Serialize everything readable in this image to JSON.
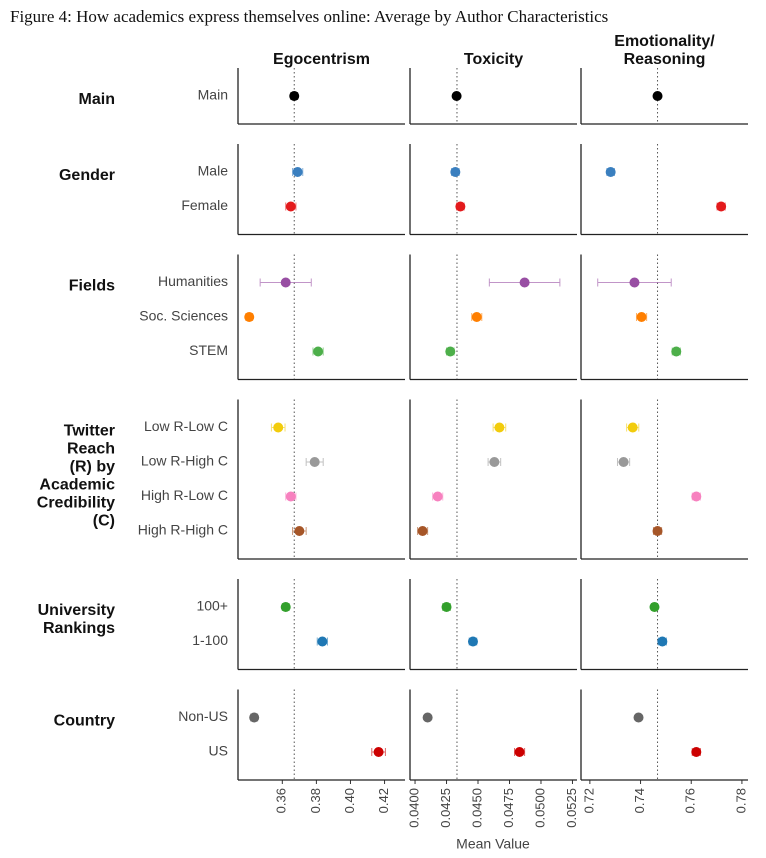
{
  "chart_data": {
    "type": "dot",
    "title": "Figure 4: How academics express themselves online: Average by Author Characteristics",
    "xlabel": "Mean Value",
    "panels": [
      {
        "title": [
          "Egocentrism"
        ],
        "xlim": [
          0.334,
          0.432
        ],
        "xticks": [
          {
            "value": 0.36,
            "label": "0.36"
          },
          {
            "value": 0.38,
            "label": "0.38"
          },
          {
            "value": 0.4,
            "label": "0.40"
          },
          {
            "value": 0.42,
            "label": "0.42"
          }
        ],
        "reference": 0.367
      },
      {
        "title": [
          "Toxicity"
        ],
        "xlim": [
          0.0396,
          0.05286
        ],
        "xticks": [
          {
            "value": 0.04,
            "label": "0.0400"
          },
          {
            "value": 0.0425,
            "label": "0.0425"
          },
          {
            "value": 0.045,
            "label": "0.0450"
          },
          {
            "value": 0.0475,
            "label": "0.0475"
          },
          {
            "value": 0.05,
            "label": "0.0500"
          },
          {
            "value": 0.0525,
            "label": "0.0525"
          }
        ],
        "reference": 0.04333
      },
      {
        "title": [
          "Emotionality/",
          "Reasoning"
        ],
        "xlim": [
          0.7165,
          0.7824
        ],
        "xticks": [
          0.72,
          0.74,
          0.76,
          0.78
        ],
        "reference": 0.7467
      }
    ],
    "groups": [
      {
        "name": [
          "Main"
        ],
        "categories": [
          "Main"
        ],
        "colors": [
          "#000000"
        ],
        "series": [
          {
            "values": [
              0.367
            ],
            "errors": [
              0.002
            ]
          },
          {
            "values": [
              0.0433
            ],
            "errors": [
              0.0002
            ]
          },
          {
            "values": [
              0.7467
            ],
            "errors": [
              0.001
            ]
          }
        ]
      },
      {
        "name": [
          "Gender"
        ],
        "categories": [
          "Male",
          "Female"
        ],
        "colors": [
          "#3a7fbf",
          "#e31a1c"
        ],
        "series": [
          {
            "values": [
              0.369,
              0.365
            ],
            "errors": [
              0.003,
              0.003
            ]
          },
          {
            "values": [
              0.0432,
              0.0436
            ],
            "errors": [
              0.0003,
              0.0003
            ]
          },
          {
            "values": [
              0.7282,
              0.7718
            ],
            "errors": [
              0.0015,
              0.0016
            ]
          }
        ]
      },
      {
        "name": [
          "Fields"
        ],
        "categories": [
          "Humanities",
          "Soc. Sciences",
          "STEM"
        ],
        "colors": [
          "#984ea3",
          "#ff7f00",
          "#4daf4a"
        ],
        "series": [
          {
            "values": [
              0.362,
              0.3406,
              0.381
            ],
            "errors": [
              0.015,
              0.002,
              0.003
            ]
          },
          {
            "values": [
              0.0487,
              0.0449,
              0.0428
            ],
            "errors": [
              0.0028,
              0.0004,
              0.0003
            ]
          },
          {
            "values": [
              0.7376,
              0.7404,
              0.7541
            ],
            "errors": [
              0.0145,
              0.002,
              0.0016
            ]
          }
        ]
      },
      {
        "name": [
          "Twitter",
          "Reach",
          "(R) by",
          "Academic",
          "Credibility",
          "(C)"
        ],
        "categories": [
          "Low R-Low C",
          "Low R-High C",
          "High R-Low C",
          "High R-High C"
        ],
        "colors": [
          "#f2cc0c",
          "#999999",
          "#f781bf",
          "#a65628"
        ],
        "series": [
          {
            "values": [
              0.3576,
              0.379,
              0.365,
              0.37
            ],
            "errors": [
              0.004,
              0.005,
              0.003,
              0.004
            ]
          },
          {
            "values": [
              0.0467,
              0.0463,
              0.0418,
              0.0406
            ],
            "errors": [
              0.0005,
              0.0005,
              0.0004,
              0.0004
            ]
          },
          {
            "values": [
              0.7369,
              0.7333,
              0.762,
              0.7467
            ],
            "errors": [
              0.0024,
              0.0024,
              0.0016,
              0.0016
            ]
          }
        ]
      },
      {
        "name": [
          "University",
          "Rankings"
        ],
        "categories": [
          "100+",
          "1-100"
        ],
        "colors": [
          "#33a02c",
          "#1f78b4"
        ],
        "series": [
          {
            "values": [
              0.362,
              0.3835
            ],
            "errors": [
              0.002,
              0.003
            ]
          },
          {
            "values": [
              0.0425,
              0.0446
            ],
            "errors": [
              0.0003,
              0.0003
            ]
          },
          {
            "values": [
              0.7455,
              0.7486
            ],
            "errors": [
              0.0012,
              0.0016
            ]
          }
        ]
      },
      {
        "name": [
          "Country"
        ],
        "categories": [
          "Non-US",
          "US"
        ],
        "colors": [
          "#666666",
          "#cc0000"
        ],
        "series": [
          {
            "values": [
              0.3435,
              0.4165
            ],
            "errors": [
              0.002,
              0.004
            ]
          },
          {
            "values": [
              0.041,
              0.0483
            ],
            "errors": [
              0.0002,
              0.0004
            ]
          },
          {
            "values": [
              0.7392,
              0.762
            ],
            "errors": [
              0.001,
              0.0016
            ]
          }
        ]
      }
    ]
  }
}
